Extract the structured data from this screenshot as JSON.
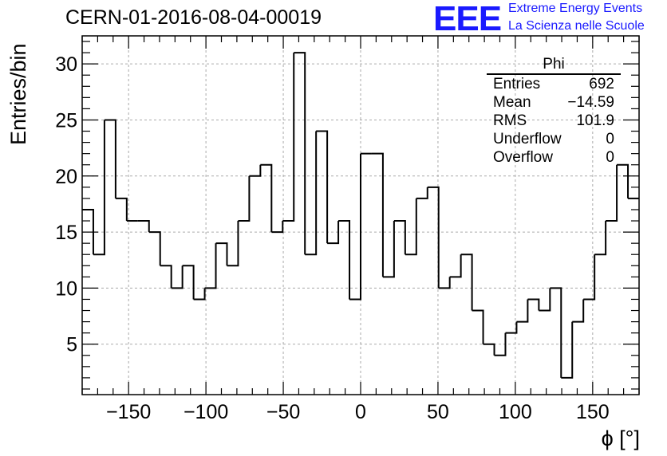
{
  "header": {
    "title": "CERN-01-2016-08-04-00019",
    "logo_text": "EEE",
    "logo_line1": "Extreme Energy Events",
    "logo_line2": "La Scienza nelle Scuole"
  },
  "stats_box": {
    "name": "Phi",
    "rows": [
      {
        "label": "Entries",
        "value": "692"
      },
      {
        "label": "Mean",
        "value": "−14.59"
      },
      {
        "label": "RMS",
        "value": "101.9"
      },
      {
        "label": "Underflow",
        "value": "0"
      },
      {
        "label": "Overflow",
        "value": "0"
      }
    ]
  },
  "chart_data": {
    "type": "bar",
    "style": "step-histogram",
    "title": "CERN-01-2016-08-04-00019",
    "xlabel": "ϕ [°]",
    "ylabel": "Entries/bin",
    "xlim": [
      -180,
      180
    ],
    "ylim": [
      0.5,
      32.5
    ],
    "bin_width": 7.2,
    "bin_edges_start": -180,
    "xticks": [
      -150,
      -100,
      -50,
      0,
      50,
      100,
      150
    ],
    "xtick_labels": [
      "−150",
      "−100",
      "−50",
      "0",
      "50",
      "100",
      "150"
    ],
    "yticks": [
      5,
      10,
      15,
      20,
      25,
      30
    ],
    "ytick_labels": [
      "5",
      "10",
      "15",
      "20",
      "25",
      "30"
    ],
    "grid": true,
    "line_color": "#000000",
    "values": [
      17,
      13,
      25,
      18,
      16,
      16,
      15,
      12,
      10,
      12,
      9,
      10,
      14,
      12,
      16,
      20,
      21,
      15,
      16,
      31,
      13,
      24,
      14,
      16,
      9,
      22,
      22,
      11,
      16,
      13,
      18,
      19,
      10,
      11,
      13,
      8,
      5,
      4,
      6,
      7,
      9,
      8,
      10,
      2,
      7,
      9,
      13,
      16,
      21,
      18
    ]
  }
}
